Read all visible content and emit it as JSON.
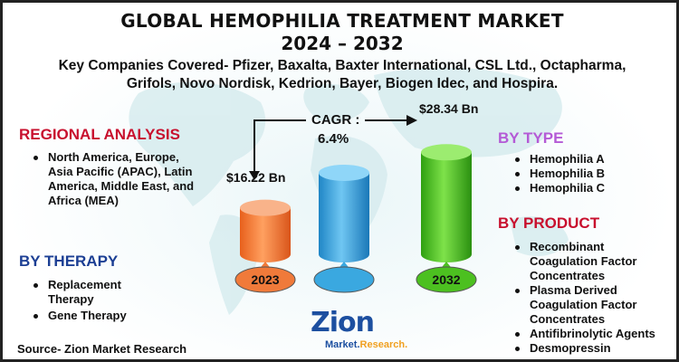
{
  "title": {
    "line1": "GLOBAL HEMOPHILIA TREATMENT MARKET",
    "line2": "2024 – 2032"
  },
  "companies": "Key Companies Covered- Pfizer, Baxalta, Baxter International, CSL Ltd., Octapharma, Grifols, Novo Nordisk, Kedrion, Bayer, Biogen Idec, and Hospira.",
  "regional": {
    "heading": "REGIONAL ANALYSIS",
    "items": [
      "North America, Europe, Asia Pacific (APAC), Latin America, Middle East, and Africa (MEA)"
    ]
  },
  "therapy": {
    "heading": "BY THERAPY",
    "items": [
      "Replacement Therapy",
      "Gene Therapy"
    ]
  },
  "type": {
    "heading": "BY TYPE",
    "items": [
      "Hemophilia A",
      "Hemophilia B",
      "Hemophilia C"
    ]
  },
  "product": {
    "heading": "BY PRODUCT",
    "items": [
      "Recombinant Coagulation Factor Concentrates",
      "Plasma Derived Coagulation Factor Concentrates",
      "Antifibrinolytic Agents",
      "Desmopressin"
    ]
  },
  "cagr": {
    "label": "CAGR :",
    "value": "6.4%"
  },
  "chart_data": {
    "type": "bar",
    "categories": [
      "2023",
      "2032"
    ],
    "values": [
      16.22,
      28.34
    ],
    "value_labels": [
      "$16.22 Bn",
      "$28.34 Bn"
    ],
    "colors": [
      "#f07a3a",
      "#4cc020",
      "#3aa8e0"
    ]
  },
  "source": "Source- Zion Market Research",
  "logo": {
    "main": "Zion",
    "sub_left": "Market.",
    "sub_right": "Research."
  },
  "colors": {
    "regional_heading": "#c8102e",
    "therapy_heading": "#1c3f94",
    "type_heading": "#b45ad6",
    "product_heading": "#c8102e"
  }
}
